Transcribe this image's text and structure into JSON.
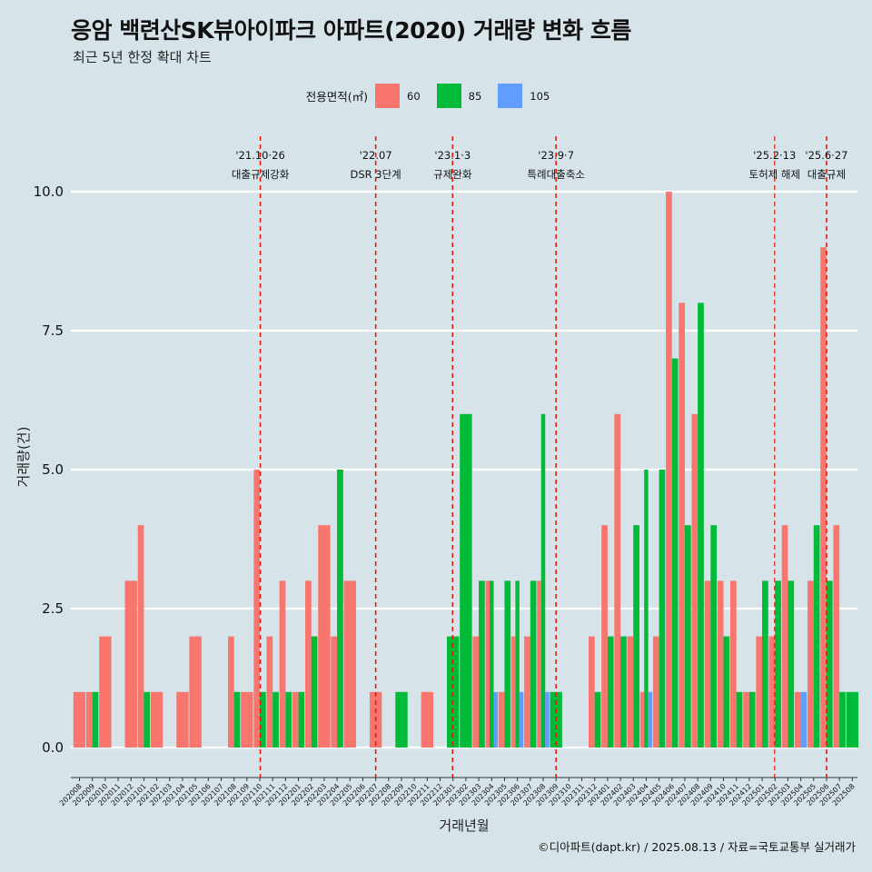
{
  "title": "응암 백련산SK뷰아이파크 아파트(2020) 거래량 변화 흐름",
  "subtitle": "최근 5년 한정 확대 차트",
  "caption": "©디아파트(dapt.kr) / 2025.08.13 / 자료=국토교통부 실거래가",
  "legend": {
    "title": "전용면적(㎡)",
    "items": [
      {
        "label": "60",
        "color": "#f8766d"
      },
      {
        "label": "85",
        "color": "#00ba38"
      },
      {
        "label": "105",
        "color": "#619cff"
      }
    ]
  },
  "chart_data": {
    "type": "bar",
    "stacking": "dodge",
    "xlabel": "거래년월",
    "ylabel": "거래량(건)",
    "ylim": [
      0,
      10
    ],
    "yticks": [
      0.0,
      2.5,
      5.0,
      7.5,
      10.0
    ],
    "ytick_labels": [
      "0.0",
      "2.5",
      "5.0",
      "7.5",
      "10.0"
    ],
    "grid": "horizontal",
    "legend_position": "top",
    "categories": [
      "202008",
      "202009",
      "202010",
      "202011",
      "202012",
      "202101",
      "202102",
      "202103",
      "202104",
      "202105",
      "202106",
      "202107",
      "202108",
      "202109",
      "202110",
      "202111",
      "202112",
      "202201",
      "202202",
      "202203",
      "202204",
      "202205",
      "202206",
      "202207",
      "202208",
      "202209",
      "202210",
      "202211",
      "202212",
      "202301",
      "202302",
      "202303",
      "202304",
      "202305",
      "202306",
      "202307",
      "202308",
      "202309",
      "202310",
      "202311",
      "202312",
      "202401",
      "202402",
      "202403",
      "202404",
      "202405",
      "202406",
      "202407",
      "202408",
      "202409",
      "202410",
      "202411",
      "202412",
      "202501",
      "202502",
      "202503",
      "202504",
      "202505",
      "202506",
      "202507",
      "202508"
    ],
    "series": [
      {
        "name": "60",
        "color": "#f8766d",
        "values": [
          1,
          1,
          2,
          0,
          3,
          4,
          1,
          0,
          1,
          2,
          0,
          0,
          2,
          1,
          5,
          2,
          3,
          1,
          3,
          4,
          2,
          3,
          0,
          1,
          0,
          0,
          0,
          1,
          0,
          0,
          0,
          2,
          3,
          1,
          2,
          2,
          3,
          0,
          0,
          0,
          2,
          4,
          6,
          2,
          1,
          2,
          10,
          8,
          6,
          3,
          3,
          3,
          1,
          2,
          2,
          4,
          1,
          3,
          9,
          4,
          0
        ]
      },
      {
        "name": "85",
        "color": "#00ba38",
        "values": [
          0,
          1,
          0,
          0,
          0,
          1,
          0,
          0,
          0,
          0,
          0,
          0,
          1,
          0,
          1,
          1,
          1,
          1,
          2,
          0,
          5,
          0,
          0,
          0,
          0,
          1,
          0,
          0,
          0,
          2,
          6,
          3,
          3,
          3,
          3,
          3,
          6,
          1,
          0,
          0,
          1,
          2,
          2,
          4,
          5,
          5,
          7,
          4,
          8,
          4,
          2,
          1,
          1,
          3,
          3,
          3,
          0,
          4,
          3,
          1,
          1
        ]
      },
      {
        "name": "105",
        "color": "#619cff",
        "values": [
          0,
          0,
          0,
          0,
          0,
          0,
          0,
          0,
          0,
          0,
          0,
          0,
          0,
          0,
          0,
          0,
          0,
          0,
          0,
          0,
          0,
          0,
          0,
          0,
          0,
          0,
          0,
          0,
          0,
          0,
          0,
          0,
          1,
          0,
          1,
          0,
          1,
          0,
          0,
          0,
          0,
          0,
          0,
          0,
          1,
          0,
          0,
          0,
          0,
          0,
          0,
          0,
          0,
          0,
          0,
          0,
          1,
          0,
          0,
          0,
          0
        ]
      }
    ],
    "events": [
      {
        "label_top": "'21.10·26",
        "label_bottom": "대출규제강화",
        "pos": 14.04
      },
      {
        "label_top": "'22.07",
        "label_bottom": "DSR 3단계",
        "pos": 23.0
      },
      {
        "label_top": "'23.1·3",
        "label_bottom": "규제완화",
        "pos": 28.97
      },
      {
        "label_top": "'23.9·7",
        "label_bottom": "특례대출축소",
        "pos": 37.0
      },
      {
        "label_top": "'25.2·13",
        "label_bottom": "토허제 해제",
        "pos": 53.97
      },
      {
        "label_top": "'25.6·27",
        "label_bottom": "대출규제",
        "pos": 58.0
      }
    ]
  }
}
